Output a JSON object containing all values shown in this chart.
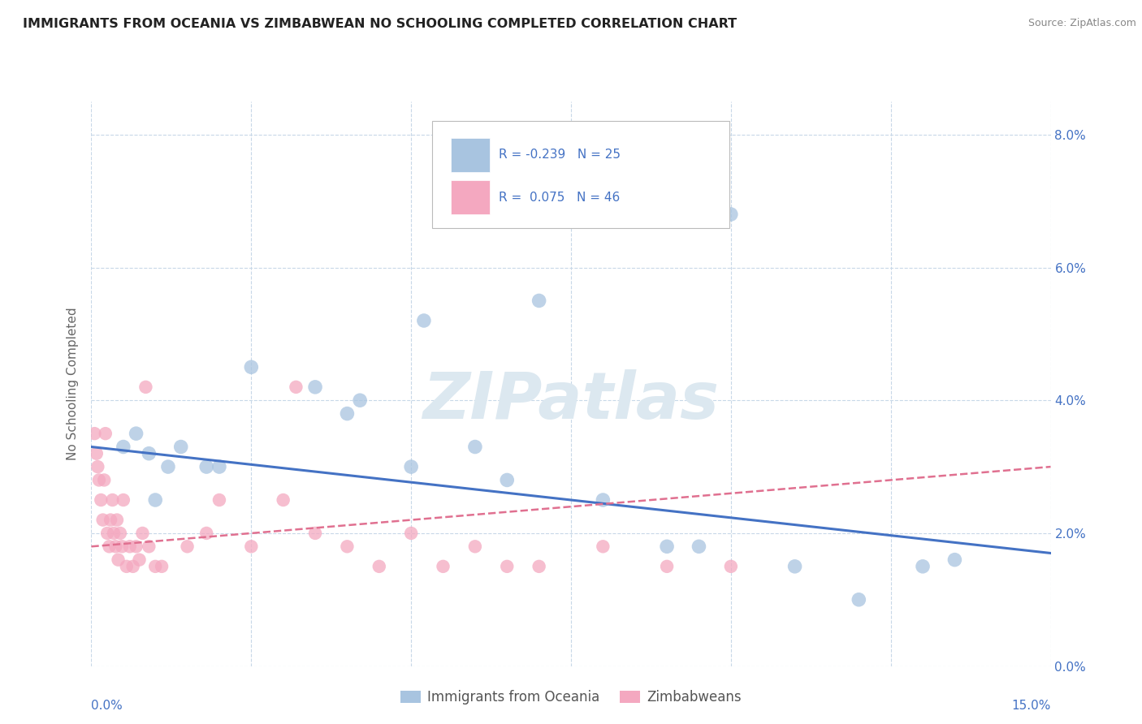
{
  "title": "IMMIGRANTS FROM OCEANIA VS ZIMBABWEAN NO SCHOOLING COMPLETED CORRELATION CHART",
  "source": "Source: ZipAtlas.com",
  "ylabel": "No Schooling Completed",
  "xlim": [
    0.0,
    15.0
  ],
  "ylim": [
    0.0,
    8.5
  ],
  "legend_blue_label": "Immigrants from Oceania",
  "legend_pink_label": "Zimbabweans",
  "blue_color": "#a8c4e0",
  "pink_color": "#f4a8c0",
  "blue_line_color": "#4472c4",
  "pink_line_color": "#e07090",
  "background_color": "#ffffff",
  "grid_color": "#c8d8e8",
  "watermark_color": "#dce8f0",
  "tick_label_color": "#4472c4",
  "blue_scatter": [
    [
      0.5,
      3.3
    ],
    [
      0.7,
      3.5
    ],
    [
      0.9,
      3.2
    ],
    [
      1.0,
      2.5
    ],
    [
      1.2,
      3.0
    ],
    [
      1.4,
      3.3
    ],
    [
      1.8,
      3.0
    ],
    [
      2.0,
      3.0
    ],
    [
      2.5,
      4.5
    ],
    [
      3.5,
      4.2
    ],
    [
      4.0,
      3.8
    ],
    [
      4.2,
      4.0
    ],
    [
      5.0,
      3.0
    ],
    [
      5.2,
      5.2
    ],
    [
      6.0,
      3.3
    ],
    [
      6.5,
      2.8
    ],
    [
      7.0,
      5.5
    ],
    [
      8.0,
      2.5
    ],
    [
      9.0,
      1.8
    ],
    [
      9.5,
      1.8
    ],
    [
      10.0,
      6.8
    ],
    [
      11.0,
      1.5
    ],
    [
      12.0,
      1.0
    ],
    [
      13.0,
      1.5
    ],
    [
      13.5,
      1.6
    ]
  ],
  "pink_scatter": [
    [
      0.05,
      3.5
    ],
    [
      0.08,
      3.2
    ],
    [
      0.1,
      3.0
    ],
    [
      0.12,
      2.8
    ],
    [
      0.15,
      2.5
    ],
    [
      0.18,
      2.2
    ],
    [
      0.2,
      2.8
    ],
    [
      0.22,
      3.5
    ],
    [
      0.25,
      2.0
    ],
    [
      0.28,
      1.8
    ],
    [
      0.3,
      2.2
    ],
    [
      0.33,
      2.5
    ],
    [
      0.35,
      2.0
    ],
    [
      0.38,
      1.8
    ],
    [
      0.4,
      2.2
    ],
    [
      0.42,
      1.6
    ],
    [
      0.45,
      2.0
    ],
    [
      0.48,
      1.8
    ],
    [
      0.5,
      2.5
    ],
    [
      0.55,
      1.5
    ],
    [
      0.6,
      1.8
    ],
    [
      0.65,
      1.5
    ],
    [
      0.7,
      1.8
    ],
    [
      0.75,
      1.6
    ],
    [
      0.8,
      2.0
    ],
    [
      0.85,
      4.2
    ],
    [
      0.9,
      1.8
    ],
    [
      1.0,
      1.5
    ],
    [
      1.1,
      1.5
    ],
    [
      1.5,
      1.8
    ],
    [
      1.8,
      2.0
    ],
    [
      2.0,
      2.5
    ],
    [
      2.5,
      1.8
    ],
    [
      3.0,
      2.5
    ],
    [
      3.2,
      4.2
    ],
    [
      3.5,
      2.0
    ],
    [
      4.0,
      1.8
    ],
    [
      4.5,
      1.5
    ],
    [
      5.0,
      2.0
    ],
    [
      5.5,
      1.5
    ],
    [
      6.0,
      1.8
    ],
    [
      6.5,
      1.5
    ],
    [
      7.0,
      1.5
    ],
    [
      8.0,
      1.8
    ],
    [
      9.0,
      1.5
    ],
    [
      10.0,
      1.5
    ]
  ],
  "blue_line": [
    [
      0.0,
      3.3
    ],
    [
      15.0,
      1.7
    ]
  ],
  "pink_line": [
    [
      0.0,
      1.8
    ],
    [
      15.0,
      3.0
    ]
  ]
}
